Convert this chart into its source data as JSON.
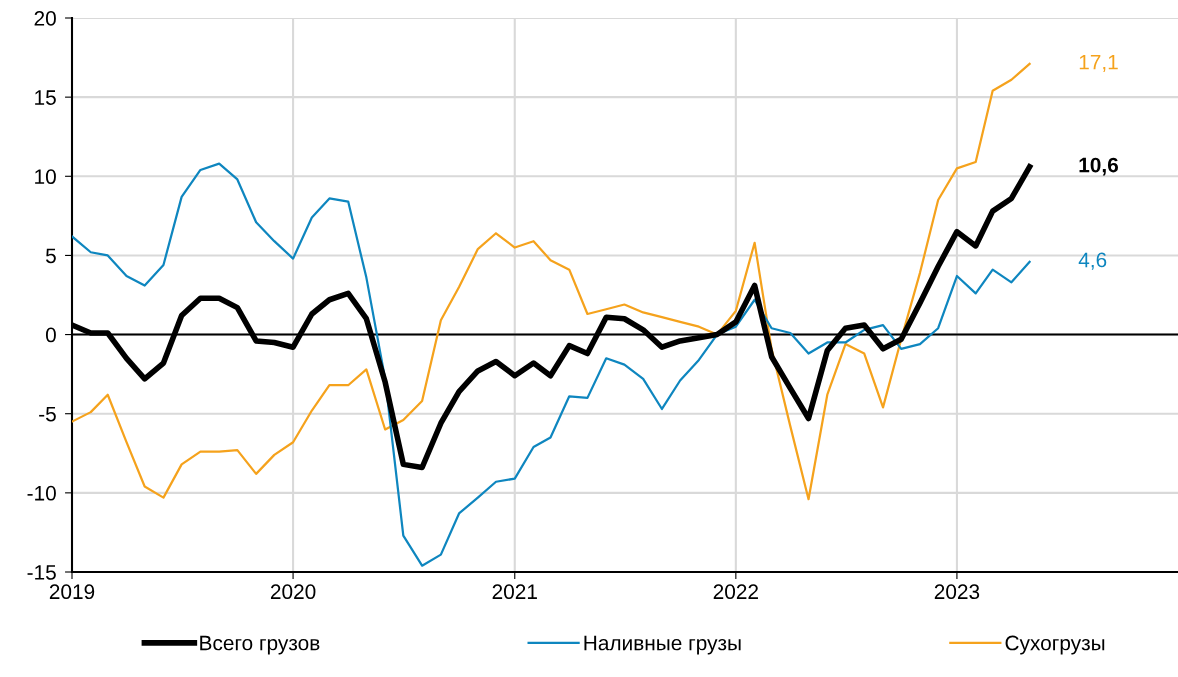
{
  "chart_data": {
    "type": "line",
    "x": [
      "2019-01",
      "2019-02",
      "2019-03",
      "2019-04",
      "2019-05",
      "2019-06",
      "2019-07",
      "2019-08",
      "2019-09",
      "2019-10",
      "2019-11",
      "2019-12",
      "2020-01",
      "2020-02",
      "2020-03",
      "2020-04",
      "2020-05",
      "2020-06",
      "2020-07",
      "2020-08",
      "2020-09",
      "2020-10",
      "2020-11",
      "2020-12",
      "2021-01",
      "2021-02",
      "2021-03",
      "2021-04",
      "2021-05",
      "2021-06",
      "2021-07",
      "2021-08",
      "2021-09",
      "2021-10",
      "2021-11",
      "2021-12",
      "2022-01",
      "2022-02",
      "2022-03",
      "2022-04",
      "2022-05",
      "2022-06",
      "2022-07",
      "2022-08",
      "2022-09",
      "2022-10",
      "2022-11",
      "2022-12",
      "2023-01",
      "2023-02",
      "2023-03",
      "2023-04",
      "2023-05"
    ],
    "series": [
      {
        "name": "Всего грузов",
        "color": "#000000",
        "values": [
          0.6,
          0.1,
          0.1,
          -1.5,
          -2.8,
          -1.8,
          1.2,
          2.3,
          2.3,
          1.7,
          -0.4,
          -0.5,
          -0.8,
          1.3,
          2.2,
          2.6,
          1.0,
          -3.0,
          -8.2,
          -8.4,
          -5.6,
          -3.6,
          -2.3,
          -1.7,
          -2.6,
          -1.8,
          -2.6,
          -0.7,
          -1.2,
          1.1,
          1.0,
          0.3,
          -0.8,
          -0.4,
          -0.2,
          0.0,
          0.8,
          3.1,
          -1.4,
          -3.4,
          -5.3,
          -1.0,
          0.4,
          0.6,
          -0.9,
          -0.3,
          2.0,
          4.3,
          6.5,
          5.6,
          7.8,
          8.6,
          10.6
        ]
      },
      {
        "name": "Наливные грузы",
        "color": "#0e86bf",
        "values": [
          6.2,
          5.2,
          5.0,
          3.7,
          3.1,
          4.4,
          8.7,
          10.4,
          10.8,
          9.8,
          7.1,
          5.9,
          4.8,
          7.4,
          8.6,
          8.4,
          3.6,
          -2.8,
          -12.7,
          -14.6,
          -13.9,
          -11.3,
          -10.3,
          -9.3,
          -9.1,
          -7.1,
          -6.5,
          -3.9,
          -4.0,
          -1.5,
          -1.9,
          -2.8,
          -4.7,
          -2.9,
          -1.6,
          0.0,
          0.5,
          2.2,
          0.4,
          0.1,
          -1.2,
          -0.5,
          -0.5,
          0.3,
          0.6,
          -0.9,
          -0.6,
          0.4,
          3.7,
          2.6,
          4.1,
          3.3,
          4.6
        ]
      },
      {
        "name": "Сухогрузы",
        "color": "#f5a21c",
        "values": [
          -5.5,
          -4.9,
          -3.8,
          -6.8,
          -9.6,
          -10.3,
          -8.2,
          -7.4,
          -7.4,
          -7.3,
          -8.8,
          -7.6,
          -6.8,
          -4.8,
          -3.2,
          -3.2,
          -2.2,
          -6.0,
          -5.4,
          -4.2,
          0.9,
          3.0,
          5.4,
          6.4,
          5.5,
          5.9,
          4.7,
          4.1,
          1.3,
          1.6,
          1.9,
          1.4,
          1.1,
          0.8,
          0.5,
          0.0,
          1.5,
          5.8,
          -0.9,
          -5.8,
          -10.4,
          -3.8,
          -0.6,
          -1.2,
          -4.6,
          -0.3,
          3.9,
          8.5,
          10.5,
          10.9,
          15.4,
          16.1,
          17.1
        ]
      }
    ],
    "annotations": [
      {
        "text": "10,6",
        "x": "2023-05",
        "y": 10.6
      },
      {
        "text": "4,6",
        "x": "2023-05",
        "y": 4.6
      },
      {
        "text": "17,1",
        "x": "2023-05",
        "y": 17.1
      }
    ],
    "ylim": [
      -15,
      20
    ],
    "yticks": [
      -15,
      -10,
      -5,
      0,
      5,
      10,
      15,
      20
    ],
    "xlim": [
      "2019-01",
      "2024-01"
    ],
    "xticks": [
      {
        "value": "2019-01",
        "label": "2019"
      },
      {
        "value": "2020-01",
        "label": "2020"
      },
      {
        "value": "2021-01",
        "label": "2021"
      },
      {
        "value": "2022-01",
        "label": "2022"
      },
      {
        "value": "2023-01",
        "label": "2023"
      }
    ],
    "ref_lines": [
      {
        "axis": "y",
        "value": 0,
        "color": "#000000"
      }
    ],
    "grid": true,
    "legend": "bottom",
    "marker": "none",
    "line_style": "solid"
  }
}
